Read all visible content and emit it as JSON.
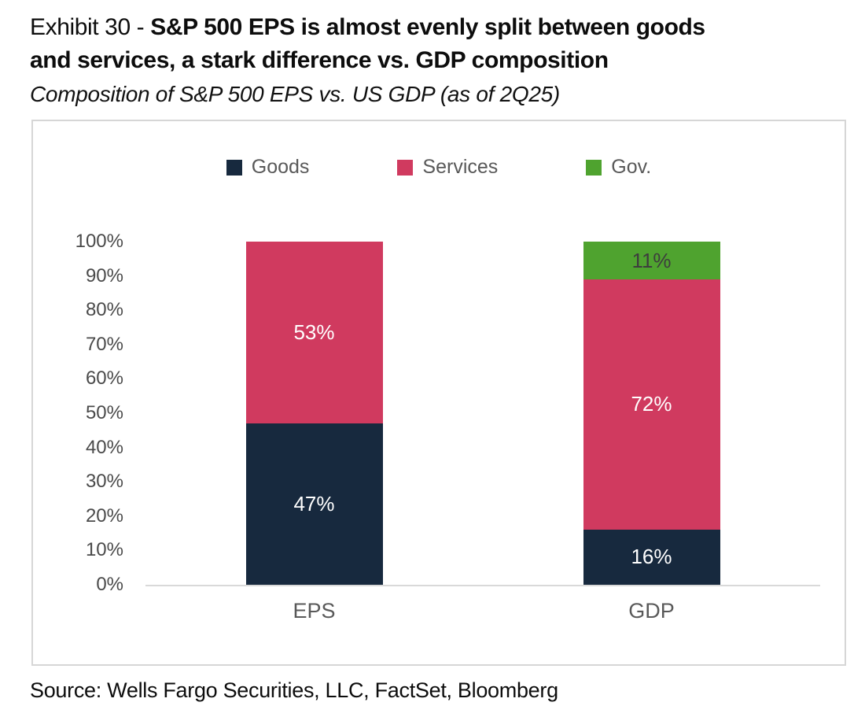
{
  "header": {
    "exhibit_prefix": "Exhibit 30 - ",
    "title": "S&P 500 EPS is almost evenly split between goods\nand services, a stark difference vs. GDP composition",
    "subtitle": "Composition of S&P 500 EPS vs. US GDP (as of 2Q25)"
  },
  "chart_data": {
    "type": "bar",
    "stacked": true,
    "title": "Composition of S&P 500 EPS vs. US GDP (as of 2Q25)",
    "categories": [
      "EPS",
      "GDP"
    ],
    "series": [
      {
        "name": "Goods",
        "color": "#17293E",
        "label_color": "#FFFFFF",
        "values": [
          47,
          16
        ]
      },
      {
        "name": "Services",
        "color": "#D03A5F",
        "label_color": "#FFFFFF",
        "values": [
          53,
          72
        ]
      },
      {
        "name": "Gov.",
        "color": "#4FA32F",
        "label_color": "#3D3D3D",
        "values": [
          null,
          11
        ]
      }
    ],
    "value_suffix": "%",
    "ylim": [
      0,
      100
    ],
    "y_tick_step": 10,
    "y_ticks": [
      "0%",
      "10%",
      "20%",
      "30%",
      "40%",
      "50%",
      "60%",
      "70%",
      "80%",
      "90%",
      "100%"
    ],
    "grid": false,
    "legend_position": "top"
  },
  "footer": {
    "source": "Source: Wells Fargo Securities, LLC, FactSet, Bloomberg"
  },
  "colors": {
    "frame_border": "#D6D6D6",
    "axis_line": "#D9D9D9",
    "tick_text": "#4A4A4A",
    "category_text": "#595959",
    "legend_text": "#595959"
  }
}
